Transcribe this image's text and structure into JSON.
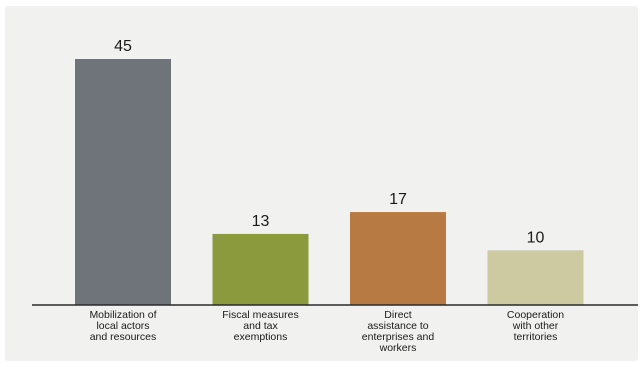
{
  "chart_data": {
    "type": "bar",
    "categories": [
      [
        "Mobilization of",
        "local actors",
        "and resources"
      ],
      [
        "Fiscal measures",
        "and tax",
        "exemptions"
      ],
      [
        "Direct",
        "assistance to",
        "enterprises and",
        "workers"
      ],
      [
        "Cooperation",
        "with other",
        "territories"
      ]
    ],
    "values": [
      45,
      13,
      17,
      10
    ],
    "colors": [
      "#6e7479",
      "#8a9a3c",
      "#b67a42",
      "#cdc9a0"
    ],
    "data_labels": true,
    "axis_color": "#2a2a2a",
    "background": "#f1f1f0",
    "grid": false,
    "legend": "none",
    "ylim": [
      0,
      45
    ]
  }
}
